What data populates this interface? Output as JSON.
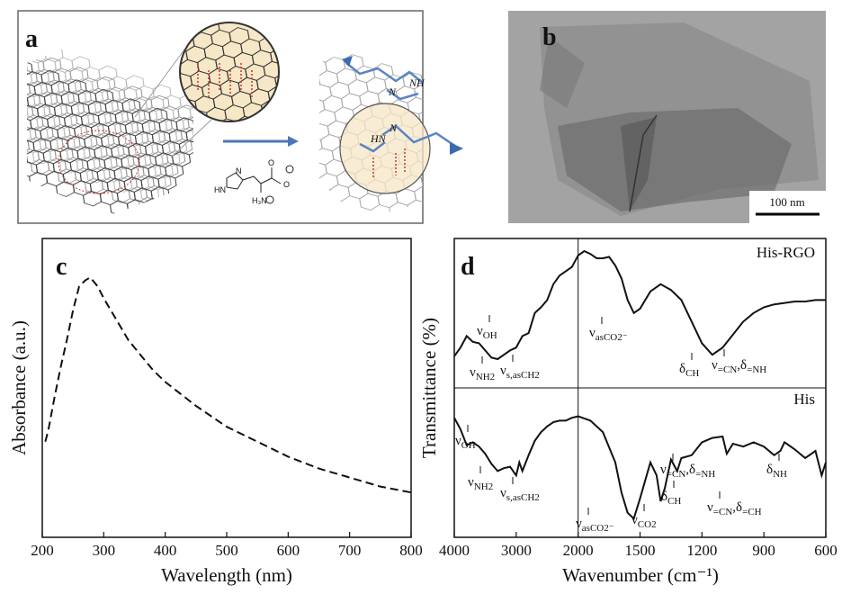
{
  "figure": {
    "panel_a": {
      "label": "a",
      "texts": [
        "NH",
        "N",
        "HN",
        "N",
        "N",
        "HN",
        "H₃N",
        "O",
        "O"
      ]
    },
    "panel_b": {
      "label": "b",
      "scale_bar": "100 nm"
    }
  },
  "chart_data": [
    {
      "type": "line",
      "panel_label": "c",
      "x_label": "Wavelength (nm)",
      "y_label": "Absorbance (a.u.)",
      "x": [
        205,
        210,
        220,
        230,
        240,
        250,
        260,
        270,
        278,
        290,
        300,
        320,
        340,
        360,
        380,
        400,
        450,
        500,
        550,
        600,
        650,
        700,
        750,
        800
      ],
      "values": [
        0.32,
        0.36,
        0.47,
        0.57,
        0.66,
        0.76,
        0.84,
        0.86,
        0.87,
        0.84,
        0.8,
        0.73,
        0.66,
        0.61,
        0.56,
        0.52,
        0.44,
        0.37,
        0.32,
        0.27,
        0.23,
        0.2,
        0.17,
        0.15
      ],
      "xlim": [
        200,
        800
      ],
      "xticks": [
        200,
        300,
        400,
        500,
        600,
        700,
        800
      ],
      "ylim": [
        0,
        1
      ],
      "color": "#111111",
      "line_style": "dashed"
    },
    {
      "type": "line",
      "panel_label": "d",
      "x_label": "Wavenumber (cm⁻¹)",
      "y_label": "Transmittance (%)",
      "xlim": [
        4000,
        600
      ],
      "xticks": [
        4000,
        3000,
        2000,
        1500,
        1200,
        900,
        600
      ],
      "ylim": [
        0,
        1
      ],
      "series": [
        {
          "name": "His-RGO",
          "color": "#111111",
          "x": [
            4000,
            3900,
            3800,
            3700,
            3600,
            3500,
            3400,
            3300,
            3200,
            3100,
            3000,
            2900,
            2800,
            2700,
            2600,
            2500,
            2400,
            2300,
            2200,
            2100,
            2000,
            1950,
            1900,
            1850,
            1800,
            1750,
            1700,
            1650,
            1600,
            1550,
            1500,
            1450,
            1400,
            1350,
            1300,
            1250,
            1200,
            1150,
            1100,
            1050,
            1000,
            950,
            900,
            850,
            800,
            750,
            700,
            650,
            600
          ],
          "values": [
            0.22,
            0.28,
            0.36,
            0.32,
            0.31,
            0.26,
            0.21,
            0.2,
            0.23,
            0.26,
            0.28,
            0.36,
            0.38,
            0.52,
            0.56,
            0.61,
            0.72,
            0.78,
            0.81,
            0.84,
            0.92,
            0.95,
            0.93,
            0.9,
            0.9,
            0.91,
            0.85,
            0.76,
            0.61,
            0.52,
            0.55,
            0.67,
            0.72,
            0.68,
            0.61,
            0.46,
            0.31,
            0.23,
            0.28,
            0.37,
            0.46,
            0.52,
            0.56,
            0.58,
            0.59,
            0.6,
            0.6,
            0.61,
            0.61
          ],
          "annotations": [
            {
              "segments": [
                "ν",
                "OH"
              ]
            },
            {
              "segments": [
                "ν",
                "NH2"
              ]
            },
            {
              "segments": [
                "ν",
                "s,asCH2"
              ]
            },
            {
              "segments": [
                "ν",
                "asCO2⁻"
              ]
            },
            {
              "segments": [
                "δ",
                "CH"
              ]
            },
            {
              "segments": [
                "ν",
                "=CN",
                ",δ",
                "=NH"
              ]
            }
          ]
        },
        {
          "name": "His",
          "color": "#111111",
          "x": [
            4000,
            3900,
            3800,
            3700,
            3600,
            3500,
            3400,
            3300,
            3200,
            3100,
            3000,
            2950,
            2900,
            2800,
            2700,
            2600,
            2500,
            2400,
            2300,
            2200,
            2100,
            2000,
            1900,
            1800,
            1700,
            1650,
            1600,
            1550,
            1500,
            1450,
            1420,
            1400,
            1380,
            1350,
            1320,
            1300,
            1250,
            1200,
            1150,
            1100,
            1080,
            1050,
            1000,
            950,
            900,
            850,
            820,
            800,
            750,
            700,
            650,
            620,
            600
          ],
          "values": [
            0.83,
            0.75,
            0.64,
            0.66,
            0.63,
            0.58,
            0.51,
            0.46,
            0.48,
            0.49,
            0.43,
            0.52,
            0.46,
            0.57,
            0.67,
            0.73,
            0.77,
            0.8,
            0.81,
            0.81,
            0.83,
            0.84,
            0.81,
            0.73,
            0.52,
            0.31,
            0.17,
            0.13,
            0.27,
            0.52,
            0.43,
            0.25,
            0.34,
            0.54,
            0.46,
            0.55,
            0.57,
            0.66,
            0.69,
            0.7,
            0.58,
            0.65,
            0.63,
            0.66,
            0.63,
            0.57,
            0.6,
            0.66,
            0.61,
            0.55,
            0.6,
            0.43,
            0.52
          ],
          "annotations": [
            {
              "segments": [
                "ν",
                "OH"
              ]
            },
            {
              "segments": [
                "ν",
                "NH2"
              ]
            },
            {
              "segments": [
                "ν",
                "s,asCH2"
              ]
            },
            {
              "segments": [
                "ν",
                "asCO2⁻"
              ]
            },
            {
              "segments": [
                "ν",
                "CO2"
              ]
            },
            {
              "segments": [
                "δ",
                "CH"
              ]
            },
            {
              "segments": [
                "ν",
                "=CN",
                ",δ",
                "=NH"
              ]
            },
            {
              "segments": [
                "ν",
                "=CN",
                ",δ",
                "=CH"
              ]
            },
            {
              "segments": [
                "δ",
                "NH"
              ]
            }
          ]
        }
      ]
    }
  ]
}
